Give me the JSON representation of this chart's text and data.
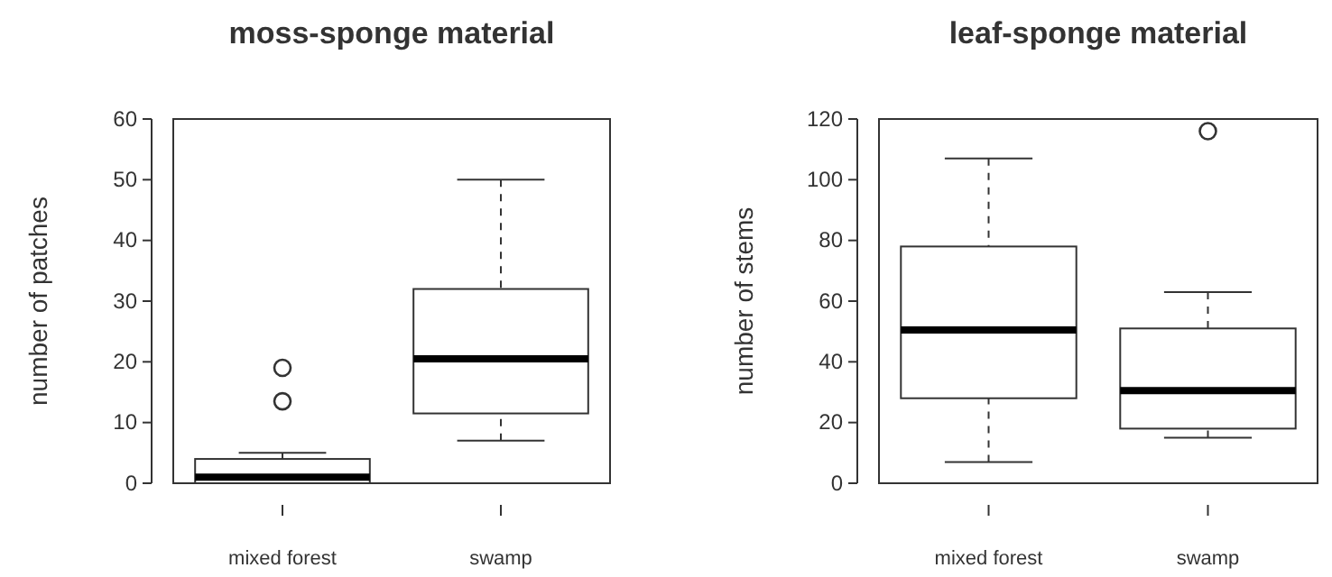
{
  "chart_data": [
    {
      "type": "box",
      "title": "moss-sponge material",
      "ylabel": "number of patches",
      "categories": [
        "mixed forest",
        "swamp"
      ],
      "ylim": [
        0,
        60
      ],
      "yticks": [
        0,
        10,
        20,
        30,
        40,
        50,
        60
      ],
      "boxes": [
        {
          "low": 0,
          "q1": 0,
          "median": 1,
          "q3": 4,
          "high": 5,
          "outliers": [
            13.5,
            19
          ]
        },
        {
          "low": 7,
          "q1": 11.5,
          "median": 20.5,
          "q3": 32,
          "high": 50
        }
      ]
    },
    {
      "type": "box",
      "title": "leaf-sponge material",
      "ylabel": "number of stems",
      "categories": [
        "mixed forest",
        "swamp"
      ],
      "ylim": [
        0,
        120
      ],
      "yticks": [
        0,
        20,
        40,
        60,
        80,
        100,
        120
      ],
      "boxes": [
        {
          "low": 7,
          "q1": 28,
          "median": 50.5,
          "q3": 78,
          "high": 107
        },
        {
          "low": 15,
          "q1": 18,
          "median": 30.5,
          "q3": 51,
          "high": 63,
          "outliers": [
            116
          ]
        }
      ]
    }
  ]
}
